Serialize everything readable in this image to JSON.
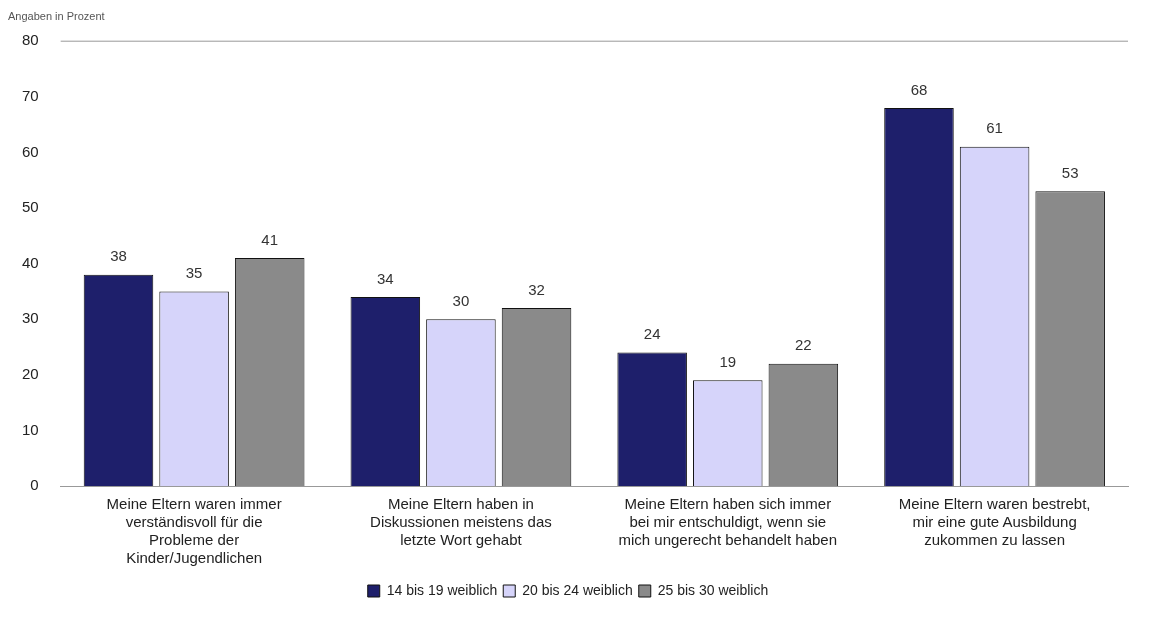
{
  "chart_data": {
    "type": "bar",
    "title": "Angaben in Prozent",
    "categories": [
      "Meine Eltern waren immer verständisvoll für die Probleme der Kinder/Jugendlichen",
      "Meine Eltern haben in Diskussionen meistens das letzte Wort gehabt",
      "Meine Eltern haben sich immer bei mir entschuldigt, wenn sie mich ungerecht behandelt haben",
      "Meine Eltern waren bestrebt, mir eine gute Ausbildung zukommen zu lassen"
    ],
    "series": [
      {
        "name": "14 bis 19 weiblich",
        "color": "#1e1f6b",
        "values": [
          38,
          34,
          24,
          68
        ]
      },
      {
        "name": "20 bis 24 weiblich",
        "color": "#d6d4fa",
        "values": [
          35,
          30,
          19,
          61
        ]
      },
      {
        "name": "25 bis 30 weiblich",
        "color": "#8a8a8a",
        "values": [
          41,
          32,
          22,
          53
        ]
      }
    ],
    "ylim": [
      0,
      80
    ],
    "yticks": [
      0,
      10,
      20,
      30,
      40,
      50,
      60,
      70,
      80
    ],
    "grid": false,
    "legend": "bottom",
    "data_labels": true
  }
}
